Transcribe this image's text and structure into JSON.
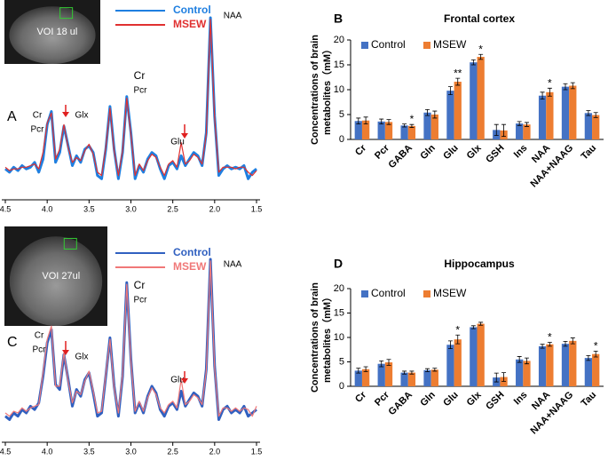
{
  "chart_data": [
    {
      "type": "line",
      "panel": "A",
      "inset_label": "VOI 18 ul",
      "x": [
        4.5,
        4.45,
        4.4,
        4.35,
        4.3,
        4.25,
        4.2,
        4.15,
        4.1,
        4.05,
        4,
        3.95,
        3.9,
        3.85,
        3.8,
        3.75,
        3.7,
        3.65,
        3.6,
        3.55,
        3.5,
        3.45,
        3.4,
        3.35,
        3.3,
        3.25,
        3.2,
        3.15,
        3.1,
        3.05,
        3,
        2.95,
        2.9,
        2.85,
        2.8,
        2.75,
        2.7,
        2.65,
        2.6,
        2.55,
        2.5,
        2.45,
        2.4,
        2.35,
        2.3,
        2.25,
        2.2,
        2.15,
        2.1,
        2.05,
        2,
        1.95,
        1.9,
        1.85,
        1.8,
        1.75,
        1.7,
        1.65,
        1.6,
        1.55,
        1.5
      ],
      "series": [
        {
          "name": "Control",
          "color": "#1f7fe0",
          "values": [
            8,
            6,
            9,
            7,
            10,
            8,
            9,
            12,
            6,
            14,
            35,
            43,
            12,
            18,
            34,
            22,
            10,
            16,
            12,
            20,
            22,
            18,
            4,
            2,
            20,
            46,
            20,
            2,
            18,
            52,
            30,
            2,
            10,
            6,
            14,
            18,
            16,
            8,
            2,
            10,
            12,
            8,
            16,
            10,
            14,
            18,
            16,
            10,
            30,
            100,
            40,
            4,
            8,
            10,
            8,
            9,
            8,
            10,
            2,
            6,
            8
          ]
        },
        {
          "name": "MSEW",
          "color": "#e03030",
          "values": [
            9,
            7,
            8,
            8,
            9,
            9,
            10,
            11,
            8,
            18,
            36,
            42,
            14,
            20,
            35,
            21,
            12,
            15,
            13,
            19,
            23,
            17,
            6,
            4,
            21,
            45,
            19,
            4,
            19,
            51,
            29,
            4,
            11,
            7,
            13,
            17,
            15,
            9,
            4,
            11,
            13,
            9,
            24,
            11,
            13,
            17,
            15,
            11,
            29,
            99,
            39,
            6,
            9,
            9,
            9,
            8,
            9,
            9,
            6,
            4,
            7
          ]
        }
      ],
      "xlim": [
        4.5,
        1.5
      ],
      "ylim": [
        0,
        100
      ],
      "xticks": [
        4.5,
        {
          "value": 4,
          "label": "4.0"
        },
        3.5,
        {
          "value": 3,
          "label": "3.0"
        },
        2.5,
        {
          "value": 2,
          "label": "2.0"
        },
        1.5
      ],
      "annotations": [
        "Cr",
        "Pcr",
        "Glx",
        "Cr",
        "Pcr",
        "Glu",
        "NAA"
      ]
    },
    {
      "type": "bar",
      "panel": "B",
      "title": "Frontal cortex",
      "ylabel": [
        "Concentrations of brain",
        "metabolites（mM）"
      ],
      "categories": [
        "Cr",
        "Pcr",
        "GABA",
        "Gln",
        "Glu",
        "Glx",
        "GSH",
        "Ins",
        "NAA",
        "NAA+NAAG",
        "Tau"
      ],
      "series": [
        {
          "name": "Control",
          "color": "#4472c4",
          "values": [
            3.7,
            3.6,
            2.8,
            5.4,
            9.8,
            15.5,
            1.9,
            3.2,
            8.8,
            10.6,
            5.3
          ],
          "errors": [
            0.6,
            0.5,
            0.3,
            0.6,
            0.8,
            0.5,
            1.1,
            0.4,
            0.7,
            0.6,
            0.5
          ]
        },
        {
          "name": "MSEW",
          "color": "#ed7d31",
          "values": [
            3.8,
            3.5,
            2.7,
            5.0,
            11.6,
            16.6,
            1.8,
            3.0,
            9.5,
            10.8,
            4.9
          ],
          "errors": [
            0.7,
            0.5,
            0.3,
            0.7,
            0.7,
            0.5,
            1.2,
            0.4,
            0.8,
            0.6,
            0.5
          ]
        }
      ],
      "ylim": [
        0,
        20
      ],
      "yticks": [
        0,
        5,
        10,
        15,
        20
      ],
      "annotations": [
        {
          "text": "*",
          "category": "GABA"
        },
        {
          "text": "**",
          "category": "Glu"
        },
        {
          "text": "*",
          "category": "Glx"
        },
        {
          "text": "*",
          "category": "NAA"
        }
      ]
    },
    {
      "type": "line",
      "panel": "C",
      "inset_label": "VOI 27ul",
      "x": [
        4.5,
        4.45,
        4.4,
        4.35,
        4.3,
        4.25,
        4.2,
        4.15,
        4.1,
        4.05,
        4,
        3.95,
        3.9,
        3.85,
        3.8,
        3.75,
        3.7,
        3.65,
        3.6,
        3.55,
        3.5,
        3.45,
        3.4,
        3.35,
        3.3,
        3.25,
        3.2,
        3.15,
        3.1,
        3.05,
        3,
        2.95,
        2.9,
        2.85,
        2.8,
        2.75,
        2.7,
        2.65,
        2.6,
        2.55,
        2.5,
        2.45,
        2.4,
        2.35,
        2.3,
        2.25,
        2.2,
        2.15,
        2.1,
        2.05,
        2,
        1.95,
        1.9,
        1.85,
        1.8,
        1.75,
        1.7,
        1.65,
        1.6,
        1.55,
        1.5
      ],
      "series": [
        {
          "name": "Control",
          "color": "#3060c0",
          "values": [
            6,
            4,
            8,
            6,
            10,
            8,
            12,
            10,
            14,
            30,
            50,
            58,
            25,
            22,
            43,
            28,
            12,
            22,
            18,
            28,
            32,
            20,
            6,
            8,
            30,
            53,
            24,
            6,
            30,
            86,
            40,
            8,
            14,
            8,
            18,
            24,
            20,
            10,
            6,
            12,
            14,
            10,
            21,
            12,
            16,
            20,
            18,
            12,
            34,
            100,
            36,
            4,
            10,
            12,
            8,
            10,
            8,
            12,
            6,
            8,
            10
          ]
        },
        {
          "name": "MSEW",
          "color": "#f07878",
          "values": [
            8,
            6,
            9,
            8,
            11,
            9,
            11,
            12,
            13,
            32,
            52,
            60,
            24,
            24,
            44,
            27,
            14,
            21,
            19,
            27,
            33,
            21,
            8,
            9,
            31,
            52,
            23,
            8,
            31,
            85,
            39,
            9,
            15,
            9,
            17,
            23,
            19,
            11,
            8,
            13,
            15,
            11,
            28,
            13,
            15,
            19,
            17,
            13,
            33,
            99,
            35,
            6,
            11,
            11,
            9,
            11,
            9,
            11,
            10,
            6,
            12
          ]
        }
      ],
      "xlim": [
        4.5,
        1.5
      ],
      "ylim": [
        0,
        100
      ],
      "xticks": [
        4.5,
        {
          "value": 4,
          "label": "4.0"
        },
        3.5,
        {
          "value": 3,
          "label": "3.0"
        },
        2.5,
        {
          "value": 2,
          "label": "2.0"
        },
        1.5
      ],
      "annotations": [
        "Cr",
        "Pcr",
        "Glx",
        "Cr",
        "Pcr",
        "Glu",
        "NAA"
      ]
    },
    {
      "type": "bar",
      "panel": "D",
      "title": "Hippocampus",
      "ylabel": [
        "Concentrations of brain",
        "metabolites（mM）"
      ],
      "categories": [
        "Cr",
        "Pcr",
        "GABA",
        "Gln",
        "Glu",
        "Glx",
        "GSH",
        "Ins",
        "NAA",
        "NAA+NAAG",
        "Tau"
      ],
      "series": [
        {
          "name": "Control",
          "color": "#4472c4",
          "values": [
            3.2,
            4.6,
            2.8,
            3.3,
            8.5,
            12.1,
            1.8,
            5.5,
            8.2,
            8.7,
            5.8
          ],
          "errors": [
            0.5,
            0.6,
            0.3,
            0.3,
            0.8,
            0.3,
            0.9,
            0.6,
            0.4,
            0.5,
            0.5
          ]
        },
        {
          "name": "MSEW",
          "color": "#ed7d31",
          "values": [
            3.5,
            4.9,
            2.8,
            3.4,
            9.6,
            12.8,
            1.9,
            5.2,
            8.6,
            9.3,
            6.6
          ],
          "errors": [
            0.5,
            0.6,
            0.3,
            0.3,
            0.9,
            0.3,
            0.9,
            0.6,
            0.4,
            0.6,
            0.6
          ]
        }
      ],
      "ylim": [
        0,
        20
      ],
      "yticks": [
        0,
        5,
        10,
        15,
        20
      ],
      "annotations": [
        {
          "text": "*",
          "category": "Glu"
        },
        {
          "text": "*",
          "category": "NAA"
        },
        {
          "text": "*",
          "category": "Tau"
        }
      ]
    }
  ]
}
